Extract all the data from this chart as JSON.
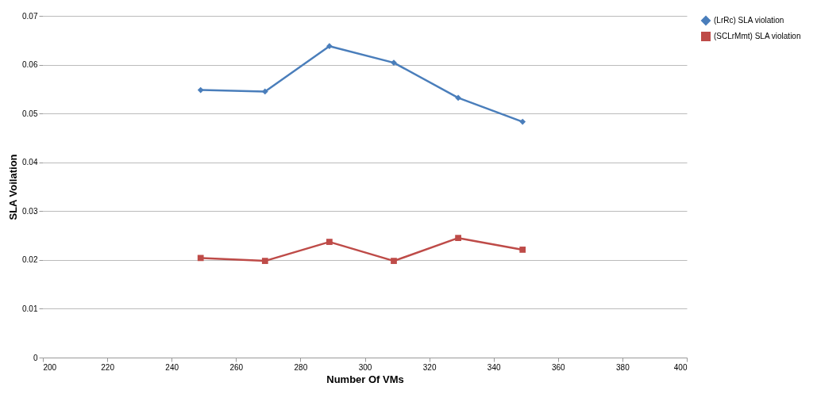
{
  "chart_data": {
    "type": "line",
    "xlabel": "Number Of VMs",
    "ylabel": "SLA Voilation",
    "x": [
      249,
      269,
      289,
      309,
      329,
      349
    ],
    "series": [
      {
        "name": "(LrRc) SLA violation",
        "color": "#4a7ebb",
        "marker": "diamond",
        "values": [
          0.0548,
          0.0545,
          0.0638,
          0.0604,
          0.0532,
          0.0483
        ]
      },
      {
        "name": "(SCLrMmt) SLA violation",
        "color": "#be4b48",
        "marker": "square",
        "values": [
          0.0204,
          0.0198,
          0.0237,
          0.0198,
          0.0245,
          0.0221
        ]
      }
    ],
    "xlim": [
      200,
      400
    ],
    "xticks": [
      200,
      220,
      240,
      260,
      280,
      300,
      320,
      340,
      360,
      380,
      400
    ],
    "ylim": [
      0,
      0.07
    ],
    "yticks": [
      0,
      0.01,
      0.02,
      0.03,
      0.04,
      0.05,
      0.06,
      0.07
    ],
    "grid": "y",
    "legend": "right"
  }
}
